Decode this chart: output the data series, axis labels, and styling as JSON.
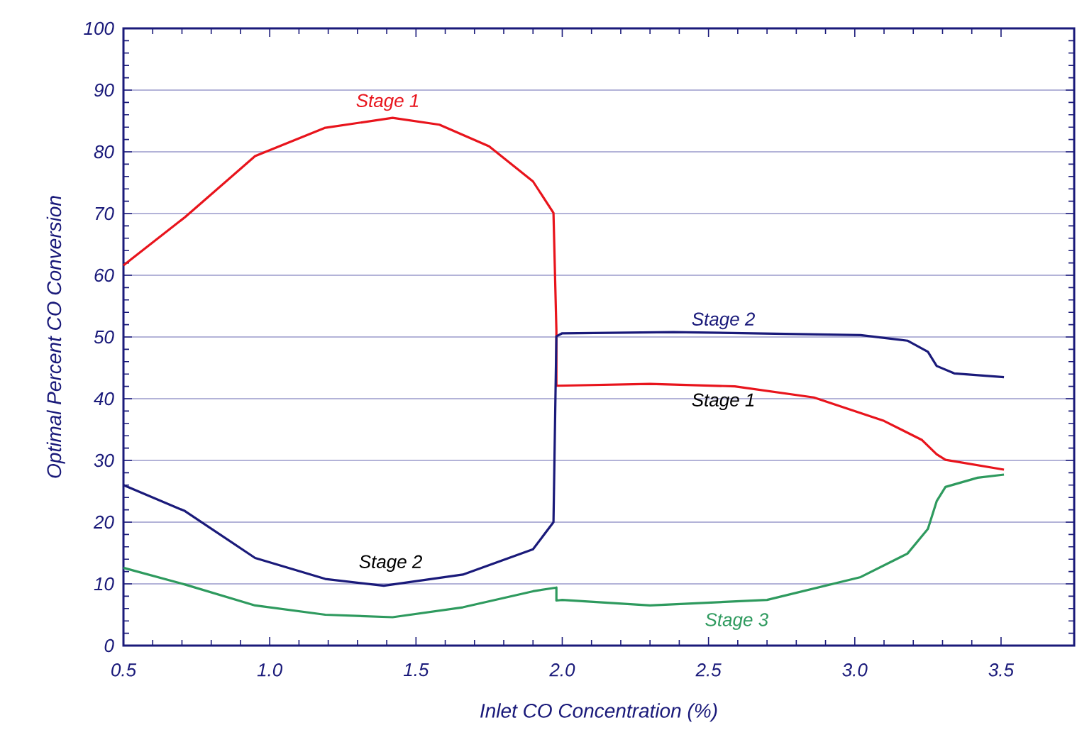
{
  "chart_data": {
    "type": "line",
    "xlabel": "Inlet CO Concentration (%)",
    "ylabel": "Optimal Percent CO Conversion",
    "xlim": [
      0.5,
      3.75
    ],
    "ylim": [
      0,
      100
    ],
    "xticks": [
      0.5,
      {
        "value": 1,
        "label": "1.0"
      },
      1.5,
      {
        "value": 2,
        "label": "2.0"
      },
      2.5,
      {
        "value": 3,
        "label": "3.0"
      },
      3.5
    ],
    "yticks": [
      0,
      10,
      20,
      30,
      40,
      50,
      60,
      70,
      80,
      90,
      100
    ],
    "grid": "y",
    "marker": "none",
    "line_style": "solid",
    "series": [
      {
        "name": "Stage 1",
        "color": "#e8141c",
        "x": [
          0.5,
          0.71,
          0.95,
          1.19,
          1.42,
          1.58,
          1.75,
          1.9,
          1.97,
          1.98,
          1.98,
          2.3,
          2.59,
          2.86,
          3.1,
          3.23,
          3.28,
          3.31,
          3.51
        ],
        "values": [
          61.6,
          69.4,
          79.3,
          83.9,
          85.5,
          84.4,
          80.9,
          75.2,
          70.1,
          51,
          42.1,
          42.4,
          42,
          40.2,
          36.4,
          33.3,
          31,
          30.1,
          28.5
        ]
      },
      {
        "name": "Stage 2",
        "color": "#1a1a7a",
        "x": [
          0.5,
          0.71,
          0.95,
          1.19,
          1.39,
          1.66,
          1.9,
          1.97,
          1.98,
          2.0,
          2.38,
          3.02,
          3.18,
          3.25,
          3.28,
          3.34,
          3.51
        ],
        "values": [
          26,
          21.8,
          14.2,
          10.8,
          9.7,
          11.5,
          15.6,
          20,
          50.1,
          50.6,
          50.8,
          50.3,
          49.4,
          47.6,
          45.3,
          44.1,
          43.5
        ]
      },
      {
        "name": "Stage 3",
        "color": "#2e9a5e",
        "x": [
          0.5,
          0.71,
          0.95,
          1.19,
          1.42,
          1.66,
          1.9,
          1.98,
          1.98,
          2.0,
          2.3,
          2.7,
          3.02,
          3.18,
          3.25,
          3.28,
          3.31,
          3.42,
          3.51
        ],
        "values": [
          12.6,
          9.9,
          6.5,
          5.0,
          4.6,
          6.2,
          8.8,
          9.4,
          7.3,
          7.4,
          6.5,
          7.4,
          11.1,
          14.9,
          18.9,
          23.4,
          25.7,
          27.2,
          27.7
        ]
      }
    ],
    "annotations": [
      "Stage 2",
      "Stage 1"
    ]
  }
}
